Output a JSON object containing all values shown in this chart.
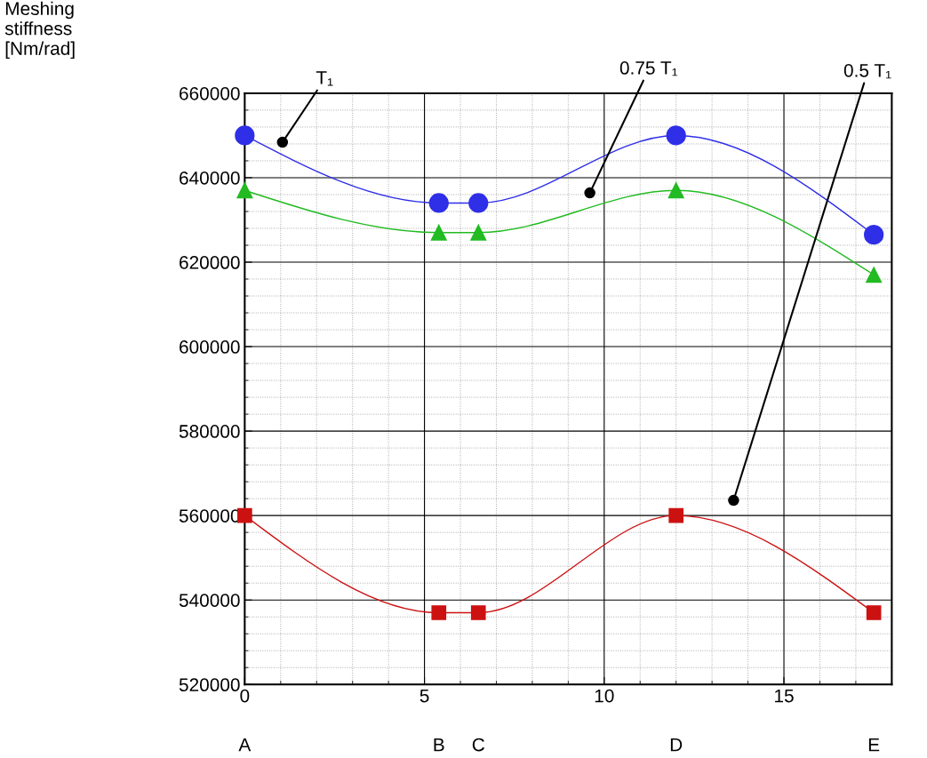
{
  "chart_data": {
    "type": "line",
    "xlim": [
      0,
      18
    ],
    "xticks": [
      0,
      5,
      10,
      15
    ],
    "ylim": [
      520000,
      660000
    ],
    "yticks": [
      520000,
      540000,
      560000,
      580000,
      600000,
      620000,
      640000,
      660000
    ],
    "grid": true,
    "line_style": "solid",
    "series": [
      {
        "color": "#2f2fe8",
        "marker": "circle",
        "x": [
          0,
          5.4,
          6.5,
          12,
          17.5
        ],
        "values": [
          650000,
          634000,
          634000,
          650000,
          626500
        ]
      },
      {
        "color": "#22bb22",
        "marker": "triangle",
        "x": [
          0,
          5.4,
          6.5,
          12,
          17.5
        ],
        "values": [
          637000,
          627000,
          627000,
          637000,
          617000
        ]
      },
      {
        "color": "#cc1111",
        "marker": "square",
        "x": [
          0,
          5.4,
          6.5,
          12,
          17.5
        ],
        "values": [
          560000,
          537000,
          537000,
          560000,
          537000
        ]
      }
    ],
    "annotations": [
      "Meshing\nstiffness\n[Nm/rad]",
      {
        "text": "T₁",
        "x": 1.05,
        "y": 648400
      },
      {
        "text": "0.75 T₁",
        "x": 9.6,
        "y": 636400
      },
      {
        "text": "0.5 T₁",
        "x": 13.6,
        "y": 563600
      },
      "A",
      "B",
      "C",
      "D",
      "E"
    ]
  }
}
